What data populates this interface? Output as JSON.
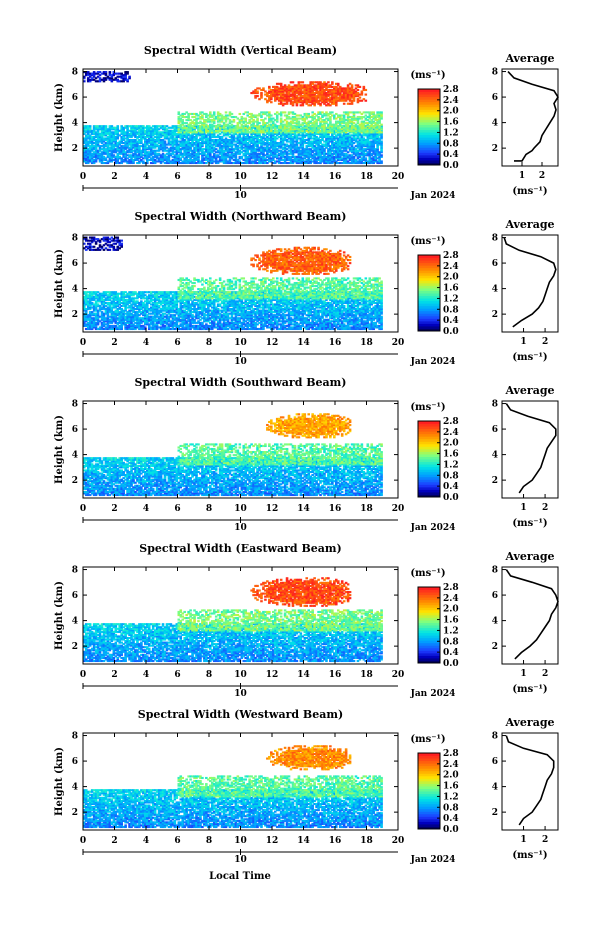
{
  "figure": {
    "xlabel": "Local Time",
    "date_label": "Jan 2024",
    "unit_label": "(ms⁻¹)",
    "avg_title": "Average",
    "avg_xlabel": "(ms⁻¹)",
    "ylabel": "Height (km)",
    "day_marker": "10"
  },
  "chart_data": [
    {
      "type": "heatmap",
      "title": "Spectral Width (Vertical Beam)",
      "xlabel": "",
      "ylabel": "Height (km)",
      "x_ticks": [
        0,
        2,
        4,
        6,
        8,
        10,
        12,
        14,
        16,
        18,
        20
      ],
      "y_ticks": [
        2,
        4,
        6,
        8
      ],
      "xlim": [
        0,
        20
      ],
      "ylim": [
        0.6,
        8.2
      ],
      "colorbar": {
        "ticks": [
          "0.0",
          "0.4",
          "0.8",
          "1.2",
          "1.6",
          "2.0",
          "2.4",
          "2.8"
        ],
        "range": [
          0,
          2.8
        ],
        "colors": [
          "#000060",
          "#1e3cff",
          "#00a0ff",
          "#00e5e5",
          "#7fff7f",
          "#ffe600",
          "#ff8c00",
          "#ff2020"
        ]
      },
      "regions": [
        {
          "label": "boundary layer",
          "x": [
            0,
            19
          ],
          "z": [
            0.8,
            3.8
          ],
          "width": 0.7
        },
        {
          "label": "mid layer",
          "x": [
            6,
            19
          ],
          "z": [
            3.2,
            4.8
          ],
          "width": 1.5
        },
        {
          "label": "cloud top",
          "x": [
            10,
            18
          ],
          "z": [
            5.2,
            7.2
          ],
          "width": 2.6
        },
        {
          "label": "early high echo",
          "x": [
            0,
            3
          ],
          "z": [
            7.2,
            8.0
          ],
          "width": 0.2
        }
      ],
      "average": {
        "xlim": [
          0,
          2.8
        ],
        "x_ticks": [
          1,
          2
        ],
        "y_ticks": [
          2,
          4,
          6,
          8
        ],
        "profile": [
          [
            0.6,
            1.0
          ],
          [
            1.0,
            1.0
          ],
          [
            1.2,
            1.5
          ],
          [
            1.5,
            1.8
          ],
          [
            1.6,
            2.0
          ],
          [
            1.9,
            2.5
          ],
          [
            2.0,
            3.0
          ],
          [
            2.2,
            3.5
          ],
          [
            2.4,
            4.0
          ],
          [
            2.6,
            4.5
          ],
          [
            2.7,
            5.0
          ],
          [
            2.6,
            5.5
          ],
          [
            2.8,
            6.0
          ],
          [
            2.6,
            6.5
          ],
          [
            1.5,
            7.0
          ],
          [
            0.6,
            7.5
          ],
          [
            0.3,
            8.0
          ]
        ]
      }
    },
    {
      "type": "heatmap",
      "title": "Spectral Width (Northward Beam)",
      "x_ticks": [
        0,
        2,
        4,
        6,
        8,
        10,
        12,
        14,
        16,
        18,
        20
      ],
      "y_ticks": [
        2,
        4,
        6,
        8
      ],
      "xlim": [
        0,
        20
      ],
      "ylim": [
        0.6,
        8.2
      ],
      "colorbar": {
        "ticks": [
          "0.0",
          "0.4",
          "0.8",
          "1.2",
          "1.6",
          "2.0",
          "2.4",
          "2.8"
        ],
        "range": [
          0,
          2.8
        ]
      },
      "regions": [
        {
          "label": "boundary layer",
          "x": [
            0,
            19
          ],
          "z": [
            0.8,
            3.8
          ],
          "width": 0.7
        },
        {
          "label": "mid layer",
          "x": [
            6,
            19
          ],
          "z": [
            3.2,
            4.8
          ],
          "width": 1.4
        },
        {
          "label": "cloud top",
          "x": [
            10,
            17
          ],
          "z": [
            5.0,
            7.2
          ],
          "width": 2.5
        },
        {
          "label": "early high echo",
          "x": [
            0,
            2.5
          ],
          "z": [
            7.0,
            8.0
          ],
          "width": 0.2
        }
      ],
      "average": {
        "xlim": [
          0,
          2.6
        ],
        "x_ticks": [
          1,
          2
        ],
        "y_ticks": [
          2,
          4,
          6,
          8
        ],
        "profile": [
          [
            0.5,
            1.0
          ],
          [
            0.9,
            1.5
          ],
          [
            1.4,
            2.0
          ],
          [
            1.7,
            2.5
          ],
          [
            1.9,
            3.0
          ],
          [
            2.0,
            3.5
          ],
          [
            2.1,
            4.0
          ],
          [
            2.2,
            4.5
          ],
          [
            2.4,
            5.0
          ],
          [
            2.5,
            5.5
          ],
          [
            2.4,
            6.0
          ],
          [
            1.8,
            6.5
          ],
          [
            0.8,
            7.0
          ],
          [
            0.2,
            7.5
          ],
          [
            0.1,
            8.0
          ]
        ]
      }
    },
    {
      "type": "heatmap",
      "title": "Spectral Width (Southward Beam)",
      "x_ticks": [
        0,
        2,
        4,
        6,
        8,
        10,
        12,
        14,
        16,
        18,
        20
      ],
      "y_ticks": [
        2,
        4,
        6,
        8
      ],
      "xlim": [
        0,
        20
      ],
      "ylim": [
        0.6,
        8.2
      ],
      "colorbar": {
        "ticks": [
          "0.0",
          "0.4",
          "0.8",
          "1.2",
          "1.6",
          "2.0",
          "2.4",
          "2.8"
        ],
        "range": [
          0,
          2.8
        ]
      },
      "regions": [
        {
          "label": "boundary layer",
          "x": [
            0,
            19
          ],
          "z": [
            0.8,
            3.8
          ],
          "width": 0.7
        },
        {
          "label": "mid layer",
          "x": [
            6,
            19
          ],
          "z": [
            3.2,
            4.8
          ],
          "width": 1.4
        },
        {
          "label": "cloud top",
          "x": [
            11,
            17
          ],
          "z": [
            5.2,
            7.2
          ],
          "width": 2.2
        }
      ],
      "average": {
        "xlim": [
          0,
          2.6
        ],
        "x_ticks": [
          1,
          2
        ],
        "y_ticks": [
          2,
          4,
          6,
          8
        ],
        "profile": [
          [
            0.8,
            1.0
          ],
          [
            1.0,
            1.5
          ],
          [
            1.4,
            2.0
          ],
          [
            1.6,
            2.5
          ],
          [
            1.8,
            3.0
          ],
          [
            1.9,
            3.5
          ],
          [
            2.0,
            4.0
          ],
          [
            2.1,
            4.5
          ],
          [
            2.3,
            5.0
          ],
          [
            2.5,
            5.5
          ],
          [
            2.5,
            6.0
          ],
          [
            2.2,
            6.5
          ],
          [
            1.2,
            7.0
          ],
          [
            0.4,
            7.5
          ],
          [
            0.2,
            8.0
          ]
        ]
      }
    },
    {
      "type": "heatmap",
      "title": "Spectral Width (Eastward Beam)",
      "x_ticks": [
        0,
        2,
        4,
        6,
        8,
        10,
        12,
        14,
        16,
        18,
        20
      ],
      "y_ticks": [
        2,
        4,
        6,
        8
      ],
      "xlim": [
        0,
        20
      ],
      "ylim": [
        0.6,
        8.2
      ],
      "colorbar": {
        "ticks": [
          "0.0",
          "0.4",
          "0.8",
          "1.2",
          "1.6",
          "2.0",
          "2.4",
          "2.8"
        ],
        "range": [
          0,
          2.8
        ]
      },
      "regions": [
        {
          "label": "boundary layer",
          "x": [
            0,
            19
          ],
          "z": [
            0.8,
            3.8
          ],
          "width": 0.7
        },
        {
          "label": "mid layer",
          "x": [
            6,
            19
          ],
          "z": [
            3.2,
            4.8
          ],
          "width": 1.5
        },
        {
          "label": "cloud top",
          "x": [
            10,
            17
          ],
          "z": [
            5.0,
            7.4
          ],
          "width": 2.6
        }
      ],
      "average": {
        "xlim": [
          0,
          2.6
        ],
        "x_ticks": [
          1,
          2
        ],
        "y_ticks": [
          2,
          4,
          6,
          8
        ],
        "profile": [
          [
            0.6,
            1.0
          ],
          [
            0.9,
            1.5
          ],
          [
            1.3,
            2.0
          ],
          [
            1.6,
            2.5
          ],
          [
            1.8,
            3.0
          ],
          [
            2.0,
            3.5
          ],
          [
            2.2,
            4.0
          ],
          [
            2.3,
            4.5
          ],
          [
            2.5,
            5.0
          ],
          [
            2.6,
            5.5
          ],
          [
            2.5,
            6.0
          ],
          [
            2.3,
            6.5
          ],
          [
            1.4,
            7.0
          ],
          [
            0.4,
            7.5
          ],
          [
            0.2,
            8.0
          ]
        ]
      }
    },
    {
      "type": "heatmap",
      "title": "Spectral Width (Westward Beam)",
      "x_ticks": [
        0,
        2,
        4,
        6,
        8,
        10,
        12,
        14,
        16,
        18,
        20
      ],
      "y_ticks": [
        2,
        4,
        6,
        8
      ],
      "xlim": [
        0,
        20
      ],
      "ylim": [
        0.6,
        8.2
      ],
      "colorbar": {
        "ticks": [
          "0.0",
          "0.4",
          "0.8",
          "1.2",
          "1.6",
          "2.0",
          "2.4",
          "2.8"
        ],
        "range": [
          0,
          2.8
        ]
      },
      "regions": [
        {
          "label": "boundary layer",
          "x": [
            0,
            19
          ],
          "z": [
            0.8,
            3.8
          ],
          "width": 0.7
        },
        {
          "label": "mid layer",
          "x": [
            6,
            19
          ],
          "z": [
            3.2,
            4.8
          ],
          "width": 1.4
        },
        {
          "label": "cloud top",
          "x": [
            11,
            17
          ],
          "z": [
            5.2,
            7.2
          ],
          "width": 2.3
        }
      ],
      "average": {
        "xlim": [
          0,
          2.6
        ],
        "x_ticks": [
          1,
          2
        ],
        "y_ticks": [
          2,
          4,
          6,
          8
        ],
        "profile": [
          [
            0.8,
            1.0
          ],
          [
            1.0,
            1.5
          ],
          [
            1.4,
            2.0
          ],
          [
            1.6,
            2.5
          ],
          [
            1.8,
            3.0
          ],
          [
            1.9,
            3.5
          ],
          [
            2.0,
            4.0
          ],
          [
            2.1,
            4.5
          ],
          [
            2.3,
            5.0
          ],
          [
            2.4,
            5.5
          ],
          [
            2.4,
            6.0
          ],
          [
            2.1,
            6.5
          ],
          [
            1.0,
            7.0
          ],
          [
            0.3,
            7.5
          ],
          [
            0.2,
            8.0
          ]
        ]
      }
    }
  ]
}
